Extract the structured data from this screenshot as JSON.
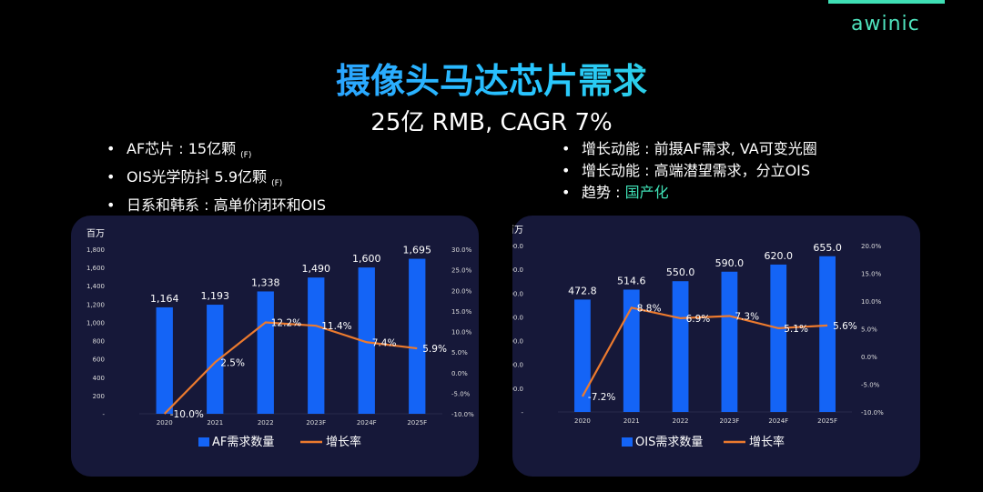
{
  "brand": {
    "logo": "awinic"
  },
  "title": "摄像头马达芯片需求",
  "subtitle": "25亿 RMB, CAGR 7%",
  "left_bullets": [
    {
      "dot": "•",
      "text": "AF芯片 : 15亿颗",
      "note": "(F)"
    },
    {
      "dot": "•",
      "text": "OIS光学防抖 5.9亿颗",
      "note": "(F)"
    },
    {
      "dot": "•",
      "text": "日系和韩系 : 高单价闭环和OIS"
    }
  ],
  "right_bullets": [
    {
      "dot": "•",
      "text": "增长动能 : 前摄AF需求, VA可变光圈"
    },
    {
      "dot": "•",
      "text": "增长动能 : 高端潜望需求，分立OIS"
    },
    {
      "dot": "•",
      "text": "趋势 : ",
      "highlight": "国产化"
    }
  ],
  "colors": {
    "bar": "#1464f6",
    "line": "#ec7a2e",
    "panel": "#161839",
    "accent": "#3fe0b5"
  },
  "chart_data": [
    {
      "type": "bar",
      "unit": "百万",
      "categories": [
        "2020",
        "2021",
        "2022",
        "2023F",
        "2024F",
        "2025F"
      ],
      "series": [
        {
          "name": "AF需求数量",
          "values": [
            1164,
            1193,
            1338,
            1490,
            1600,
            1695
          ],
          "labels": [
            "1,164",
            "1,193",
            "1,338",
            "1,490",
            "1,600",
            "1,695"
          ]
        },
        {
          "name": "增长率",
          "type": "line",
          "axis": "right",
          "values": [
            -10.0,
            2.5,
            12.2,
            11.4,
            7.4,
            5.9
          ],
          "labels": [
            "-10.0%",
            "2.5%",
            "12.2%",
            "11.4%",
            "7.4%",
            "5.9%"
          ]
        }
      ],
      "ylim": [
        0,
        1800
      ],
      "yticks": [
        "-",
        "200",
        "400",
        "600",
        "800",
        "1,000",
        "1,200",
        "1,400",
        "1,600",
        "1,800"
      ],
      "ylim_right": [
        -10,
        30
      ],
      "yticks_right": [
        "-10.0%",
        "-5.0%",
        "0.0%",
        "5.0%",
        "10.0%",
        "15.0%",
        "20.0%",
        "25.0%",
        "30.0%"
      ],
      "legend": "bottom"
    },
    {
      "type": "bar",
      "unit": "百万",
      "categories": [
        "2020",
        "2021",
        "2022",
        "2023F",
        "2024F",
        "2025F"
      ],
      "series": [
        {
          "name": "OIS需求数量",
          "values": [
            472.8,
            514.6,
            550.0,
            590.0,
            620.0,
            655.0
          ],
          "labels": [
            "472.8",
            "514.6",
            "550.0",
            "590.0",
            "620.0",
            "655.0"
          ]
        },
        {
          "name": "增长率",
          "type": "line",
          "axis": "right",
          "values": [
            -7.2,
            8.8,
            6.9,
            7.3,
            5.1,
            5.6
          ],
          "labels": [
            "-7.2%",
            "8.8%",
            "6.9%",
            "7.3%",
            "5.1%",
            "5.6%"
          ]
        }
      ],
      "ylim": [
        0,
        700
      ],
      "yticks": [
        "-",
        "100.0",
        "200.0",
        "300.0",
        "400.0",
        "500.0",
        "600.0",
        "700.0"
      ],
      "ylim_right": [
        -10,
        20
      ],
      "yticks_right": [
        "-10.0%",
        "-5.0%",
        "0.0%",
        "5.0%",
        "10.0%",
        "15.0%",
        "20.0%"
      ],
      "legend": "bottom"
    }
  ]
}
